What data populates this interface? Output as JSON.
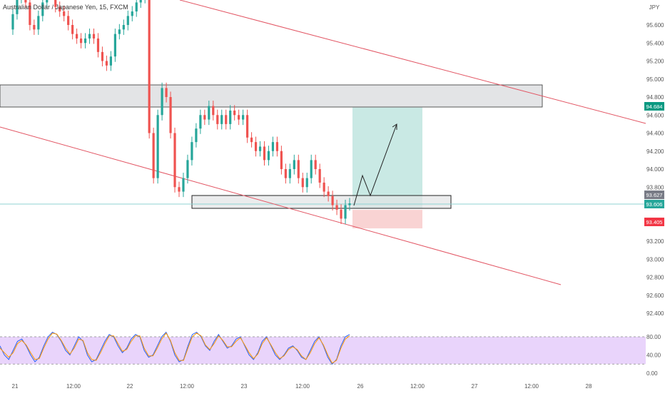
{
  "header": {
    "symbol_title": "Australian Dollar / Japanese Yen, 15, FXCM"
  },
  "colors": {
    "up": "#26a69a",
    "down": "#ef5350",
    "channel": "#e25563",
    "zone_fill": "#e3e4e6",
    "target_fill": "#c9e9e4",
    "stop_fill": "#f9d3d3",
    "rsi_band": "#e9d4fb",
    "grid_text": "#555555",
    "current_line": "#8fd3d3"
  },
  "chart_data": [
    {
      "type": "line",
      "title": "Australian Dollar / Japanese Yen, 15, FXCM",
      "currency_label": "JPY",
      "y_ticks": [
        "95.600",
        "95.400",
        "95.200",
        "95.000",
        "94.800",
        "94.600",
        "94.400",
        "94.200",
        "94.000",
        "93.800",
        "93.200",
        "93.000",
        "92.800",
        "92.600",
        "92.400"
      ],
      "ylim": [
        92.3,
        96.0
      ],
      "x_ticks": [
        "21",
        "12:00",
        "22",
        "12:00",
        "23",
        "12:00",
        "26",
        "12:00",
        "27",
        "12:00",
        "28"
      ],
      "price_series": [
        95.55,
        95.72,
        95.9,
        96.0,
        95.85,
        95.6,
        95.55,
        95.7,
        95.85,
        95.95,
        95.95,
        95.8,
        95.75,
        95.7,
        95.6,
        95.5,
        95.45,
        95.4,
        95.45,
        95.5,
        95.45,
        95.3,
        95.2,
        95.15,
        95.25,
        95.5,
        95.55,
        95.6,
        95.7,
        95.75,
        95.85,
        95.9,
        96.0,
        94.4,
        93.9,
        94.6,
        94.9,
        94.8,
        94.4,
        93.8,
        93.75,
        93.9,
        94.1,
        94.3,
        94.45,
        94.6,
        94.55,
        94.7,
        94.6,
        94.5,
        94.6,
        94.5,
        94.65,
        94.6,
        94.55,
        94.6,
        94.35,
        94.3,
        94.2,
        94.25,
        94.1,
        94.2,
        94.3,
        94.2,
        94.0,
        93.9,
        94.0,
        94.1,
        93.9,
        93.8,
        93.9,
        94.1,
        94.0,
        93.85,
        93.75,
        93.7,
        93.6,
        93.55,
        93.45,
        93.6,
        93.62
      ],
      "series": [
        {
          "name": "",
          "value_label": "93.606"
        }
      ],
      "price_labels": {
        "target": "94.684",
        "entry": "93.627",
        "current": "93.606",
        "stop": "93.405"
      },
      "zones": [
        {
          "label": "supply-zone",
          "from": 94.67,
          "to": 94.93
        },
        {
          "label": "demand-zone",
          "from": 93.5,
          "to": 93.65
        }
      ],
      "long_position": {
        "entry": 93.627,
        "target": 94.684,
        "stop": 93.405
      }
    },
    {
      "type": "line",
      "title": "",
      "y_ticks": [
        "80.00",
        "40.00",
        "0.00"
      ],
      "ylim": [
        0,
        100
      ],
      "band": [
        20,
        80
      ],
      "series": [
        {
          "name": "",
          "values": [
            60,
            40,
            30,
            50,
            70,
            75,
            60,
            40,
            25,
            35,
            60,
            80,
            90,
            85,
            70,
            50,
            40,
            60,
            80,
            70,
            40,
            25,
            30,
            50,
            70,
            85,
            80,
            60,
            45,
            55,
            75,
            85,
            80,
            50,
            35,
            40,
            60,
            80,
            90,
            70,
            40,
            25,
            30,
            60,
            85,
            90,
            80,
            60,
            50,
            70,
            85,
            70,
            55,
            60,
            75,
            80,
            60,
            40,
            30,
            45,
            70,
            80,
            60,
            40,
            30,
            40,
            55,
            60,
            50,
            35,
            30,
            50,
            70,
            80,
            60,
            35,
            20,
            30,
            60,
            80,
            85
          ]
        },
        {
          "name": "",
          "values": [
            55,
            45,
            35,
            45,
            65,
            72,
            62,
            45,
            30,
            32,
            55,
            75,
            88,
            86,
            72,
            55,
            42,
            55,
            75,
            72,
            45,
            30,
            28,
            45,
            65,
            82,
            82,
            65,
            48,
            52,
            70,
            82,
            82,
            55,
            38,
            38,
            55,
            75,
            88,
            72,
            45,
            28,
            28,
            55,
            80,
            88,
            82,
            62,
            52,
            65,
            82,
            72,
            58,
            58,
            70,
            78,
            62,
            45,
            32,
            42,
            65,
            78,
            62,
            45,
            32,
            38,
            52,
            58,
            52,
            38,
            30,
            45,
            65,
            78,
            62,
            40,
            22,
            28,
            55,
            75,
            82
          ]
        }
      ]
    }
  ]
}
